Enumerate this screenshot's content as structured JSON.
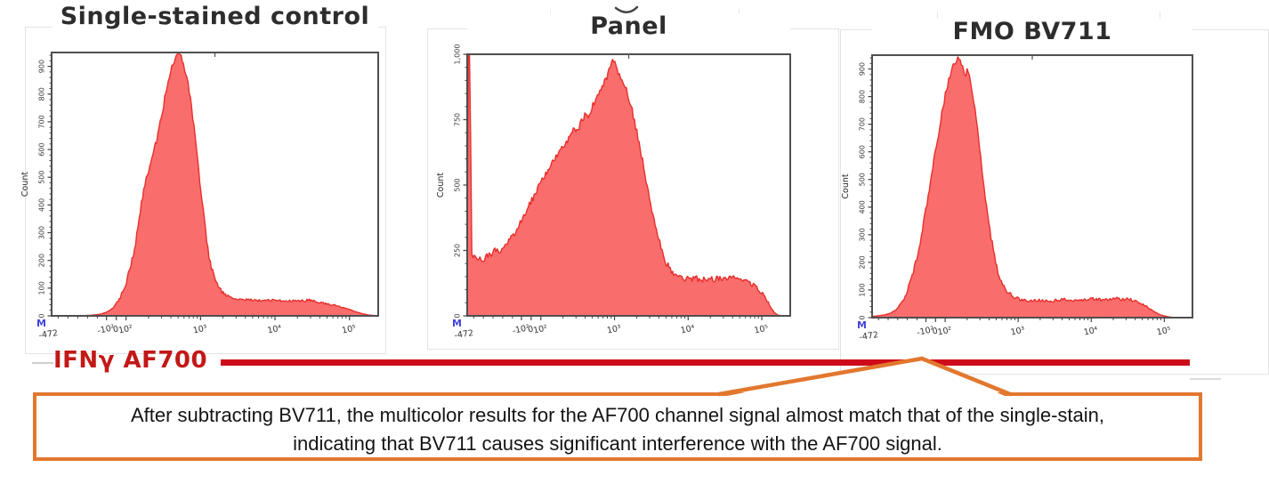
{
  "axis_label": {
    "text": "IFNγ AF700",
    "color": "#c31818"
  },
  "red_line_color": "#ce0b1b",
  "callout": {
    "border_color": "#e2772e",
    "line1": "After subtracting BV711, the multicolor results for the AF700 channel signal almost match that of the single-stain,",
    "line2": "indicating that BV711 causes significant interference with the AF700 signal."
  },
  "chart_data": [
    {
      "type": "area",
      "title": "Single-stained control",
      "ylabel": "Count",
      "marker": "M",
      "corner_label": "-472",
      "ymax": 950,
      "ytick_values": [
        0,
        100,
        200,
        300,
        400,
        500,
        600,
        700,
        800,
        900
      ],
      "ytick_labels": [
        "0",
        "100",
        "200",
        "300",
        "400",
        "500",
        "600",
        "700",
        "800",
        "900"
      ],
      "y_minor_step": 20,
      "xticks": [
        {
          "f": 0.168,
          "label": "-10²"
        },
        {
          "f": 0.198,
          "label": "0"
        },
        {
          "f": 0.228,
          "label": "10²"
        },
        {
          "f": 0.456,
          "label": "10³"
        },
        {
          "f": 0.684,
          "label": "10⁴"
        },
        {
          "f": 0.912,
          "label": "10⁵"
        }
      ],
      "fill": "#fa6d6d",
      "stroke": "#e6302c",
      "points": [
        [
          0,
          0
        ],
        [
          0.08,
          0
        ],
        [
          0.12,
          2
        ],
        [
          0.15,
          6
        ],
        [
          0.17,
          14
        ],
        [
          0.19,
          32
        ],
        [
          0.21,
          65
        ],
        [
          0.23,
          125
        ],
        [
          0.25,
          215
        ],
        [
          0.26,
          290
        ],
        [
          0.27,
          370
        ],
        [
          0.28,
          445
        ],
        [
          0.29,
          500
        ],
        [
          0.3,
          540
        ],
        [
          0.31,
          575
        ],
        [
          0.32,
          625
        ],
        [
          0.33,
          685
        ],
        [
          0.34,
          745
        ],
        [
          0.35,
          805
        ],
        [
          0.36,
          862
        ],
        [
          0.37,
          908
        ],
        [
          0.38,
          936
        ],
        [
          0.39,
          945
        ],
        [
          0.4,
          922
        ],
        [
          0.41,
          882
        ],
        [
          0.42,
          820
        ],
        [
          0.43,
          740
        ],
        [
          0.44,
          642
        ],
        [
          0.45,
          532
        ],
        [
          0.46,
          420
        ],
        [
          0.47,
          318
        ],
        [
          0.48,
          232
        ],
        [
          0.49,
          168
        ],
        [
          0.5,
          128
        ],
        [
          0.51,
          104
        ],
        [
          0.52,
          88
        ],
        [
          0.54,
          70
        ],
        [
          0.56,
          62
        ],
        [
          0.6,
          58
        ],
        [
          0.64,
          55
        ],
        [
          0.68,
          57
        ],
        [
          0.72,
          54
        ],
        [
          0.76,
          52
        ],
        [
          0.79,
          58
        ],
        [
          0.82,
          48
        ],
        [
          0.85,
          42
        ],
        [
          0.88,
          34
        ],
        [
          0.91,
          24
        ],
        [
          0.93,
          15
        ],
        [
          0.95,
          8
        ],
        [
          0.97,
          3
        ],
        [
          1,
          0
        ]
      ]
    },
    {
      "type": "area",
      "title": "Panel",
      "ylabel": "Count",
      "marker": "M",
      "corner_label": "-472",
      "ymax": 1000,
      "ytick_values": [
        0,
        250,
        500,
        750,
        1000
      ],
      "ytick_labels": [
        "0",
        "250",
        "500",
        "750",
        "1,000"
      ],
      "y_minor_step": 50,
      "xticks": [
        {
          "f": 0.168,
          "label": "-10²"
        },
        {
          "f": 0.198,
          "label": "0"
        },
        {
          "f": 0.228,
          "label": "10²"
        },
        {
          "f": 0.456,
          "label": "10³"
        },
        {
          "f": 0.684,
          "label": "10⁴"
        },
        {
          "f": 0.912,
          "label": "10⁵"
        }
      ],
      "fill": "#fa6d6d",
      "stroke": "#e6302c",
      "points": [
        [
          0,
          235
        ],
        [
          0.003,
          1000
        ],
        [
          0.009,
          1000
        ],
        [
          0.013,
          235
        ],
        [
          0.03,
          228
        ],
        [
          0.05,
          218
        ],
        [
          0.07,
          232
        ],
        [
          0.09,
          252
        ],
        [
          0.1,
          246
        ],
        [
          0.12,
          268
        ],
        [
          0.14,
          302
        ],
        [
          0.16,
          348
        ],
        [
          0.18,
          395
        ],
        [
          0.2,
          442
        ],
        [
          0.22,
          492
        ],
        [
          0.24,
          538
        ],
        [
          0.26,
          578
        ],
        [
          0.28,
          618
        ],
        [
          0.3,
          652
        ],
        [
          0.32,
          692
        ],
        [
          0.33,
          712
        ],
        [
          0.34,
          702
        ],
        [
          0.35,
          732
        ],
        [
          0.36,
          756
        ],
        [
          0.37,
          776
        ],
        [
          0.378,
          762
        ],
        [
          0.385,
          792
        ],
        [
          0.395,
          822
        ],
        [
          0.405,
          852
        ],
        [
          0.415,
          876
        ],
        [
          0.425,
          896
        ],
        [
          0.435,
          922
        ],
        [
          0.445,
          952
        ],
        [
          0.452,
          988
        ],
        [
          0.458,
          958
        ],
        [
          0.465,
          938
        ],
        [
          0.475,
          916
        ],
        [
          0.485,
          892
        ],
        [
          0.495,
          856
        ],
        [
          0.505,
          812
        ],
        [
          0.515,
          762
        ],
        [
          0.525,
          702
        ],
        [
          0.535,
          642
        ],
        [
          0.545,
          578
        ],
        [
          0.555,
          512
        ],
        [
          0.565,
          450
        ],
        [
          0.575,
          390
        ],
        [
          0.585,
          332
        ],
        [
          0.595,
          282
        ],
        [
          0.605,
          242
        ],
        [
          0.615,
          206
        ],
        [
          0.625,
          182
        ],
        [
          0.645,
          158
        ],
        [
          0.665,
          146
        ],
        [
          0.685,
          140
        ],
        [
          0.705,
          144
        ],
        [
          0.725,
          138
        ],
        [
          0.745,
          143
        ],
        [
          0.765,
          140
        ],
        [
          0.785,
          146
        ],
        [
          0.805,
          141
        ],
        [
          0.825,
          143
        ],
        [
          0.845,
          138
        ],
        [
          0.865,
          130
        ],
        [
          0.885,
          118
        ],
        [
          0.9,
          102
        ],
        [
          0.915,
          84
        ],
        [
          0.93,
          55
        ],
        [
          0.94,
          32
        ],
        [
          0.95,
          14
        ],
        [
          0.96,
          4
        ],
        [
          0.97,
          0
        ],
        [
          1,
          0
        ]
      ]
    },
    {
      "type": "area",
      "title": "FMO BV711",
      "ylabel": "Count",
      "marker": "M",
      "corner_label": "-472",
      "ymax": 950,
      "ytick_values": [
        0,
        100,
        200,
        300,
        400,
        500,
        600,
        700,
        800,
        900
      ],
      "ytick_labels": [
        "0",
        "100",
        "200",
        "300",
        "400",
        "500",
        "600",
        "700",
        "800",
        "900"
      ],
      "y_minor_step": 20,
      "xticks": [
        {
          "f": 0.168,
          "label": "-10²"
        },
        {
          "f": 0.198,
          "label": "0"
        },
        {
          "f": 0.228,
          "label": "10²"
        },
        {
          "f": 0.456,
          "label": "10³"
        },
        {
          "f": 0.684,
          "label": "10⁴"
        },
        {
          "f": 0.912,
          "label": "10⁵"
        }
      ],
      "fill": "#fa6d6d",
      "stroke": "#e6302c",
      "points": [
        [
          0,
          4
        ],
        [
          0.02,
          7
        ],
        [
          0.04,
          10
        ],
        [
          0.06,
          17
        ],
        [
          0.08,
          34
        ],
        [
          0.1,
          68
        ],
        [
          0.12,
          128
        ],
        [
          0.14,
          218
        ],
        [
          0.16,
          338
        ],
        [
          0.18,
          478
        ],
        [
          0.2,
          618
        ],
        [
          0.22,
          758
        ],
        [
          0.24,
          868
        ],
        [
          0.26,
          928
        ],
        [
          0.27,
          945
        ],
        [
          0.28,
          922
        ],
        [
          0.29,
          884
        ],
        [
          0.3,
          892
        ],
        [
          0.31,
          842
        ],
        [
          0.32,
          762
        ],
        [
          0.33,
          672
        ],
        [
          0.34,
          572
        ],
        [
          0.35,
          472
        ],
        [
          0.36,
          382
        ],
        [
          0.37,
          302
        ],
        [
          0.38,
          232
        ],
        [
          0.39,
          176
        ],
        [
          0.4,
          136
        ],
        [
          0.42,
          96
        ],
        [
          0.44,
          76
        ],
        [
          0.46,
          66
        ],
        [
          0.48,
          61
        ],
        [
          0.52,
          63
        ],
        [
          0.56,
          60
        ],
        [
          0.6,
          66
        ],
        [
          0.64,
          62
        ],
        [
          0.68,
          68
        ],
        [
          0.72,
          65
        ],
        [
          0.76,
          70
        ],
        [
          0.78,
          66
        ],
        [
          0.8,
          68
        ],
        [
          0.82,
          60
        ],
        [
          0.84,
          50
        ],
        [
          0.86,
          38
        ],
        [
          0.88,
          22
        ],
        [
          0.9,
          10
        ],
        [
          0.92,
          4
        ],
        [
          0.94,
          0
        ],
        [
          1,
          0
        ]
      ]
    }
  ]
}
